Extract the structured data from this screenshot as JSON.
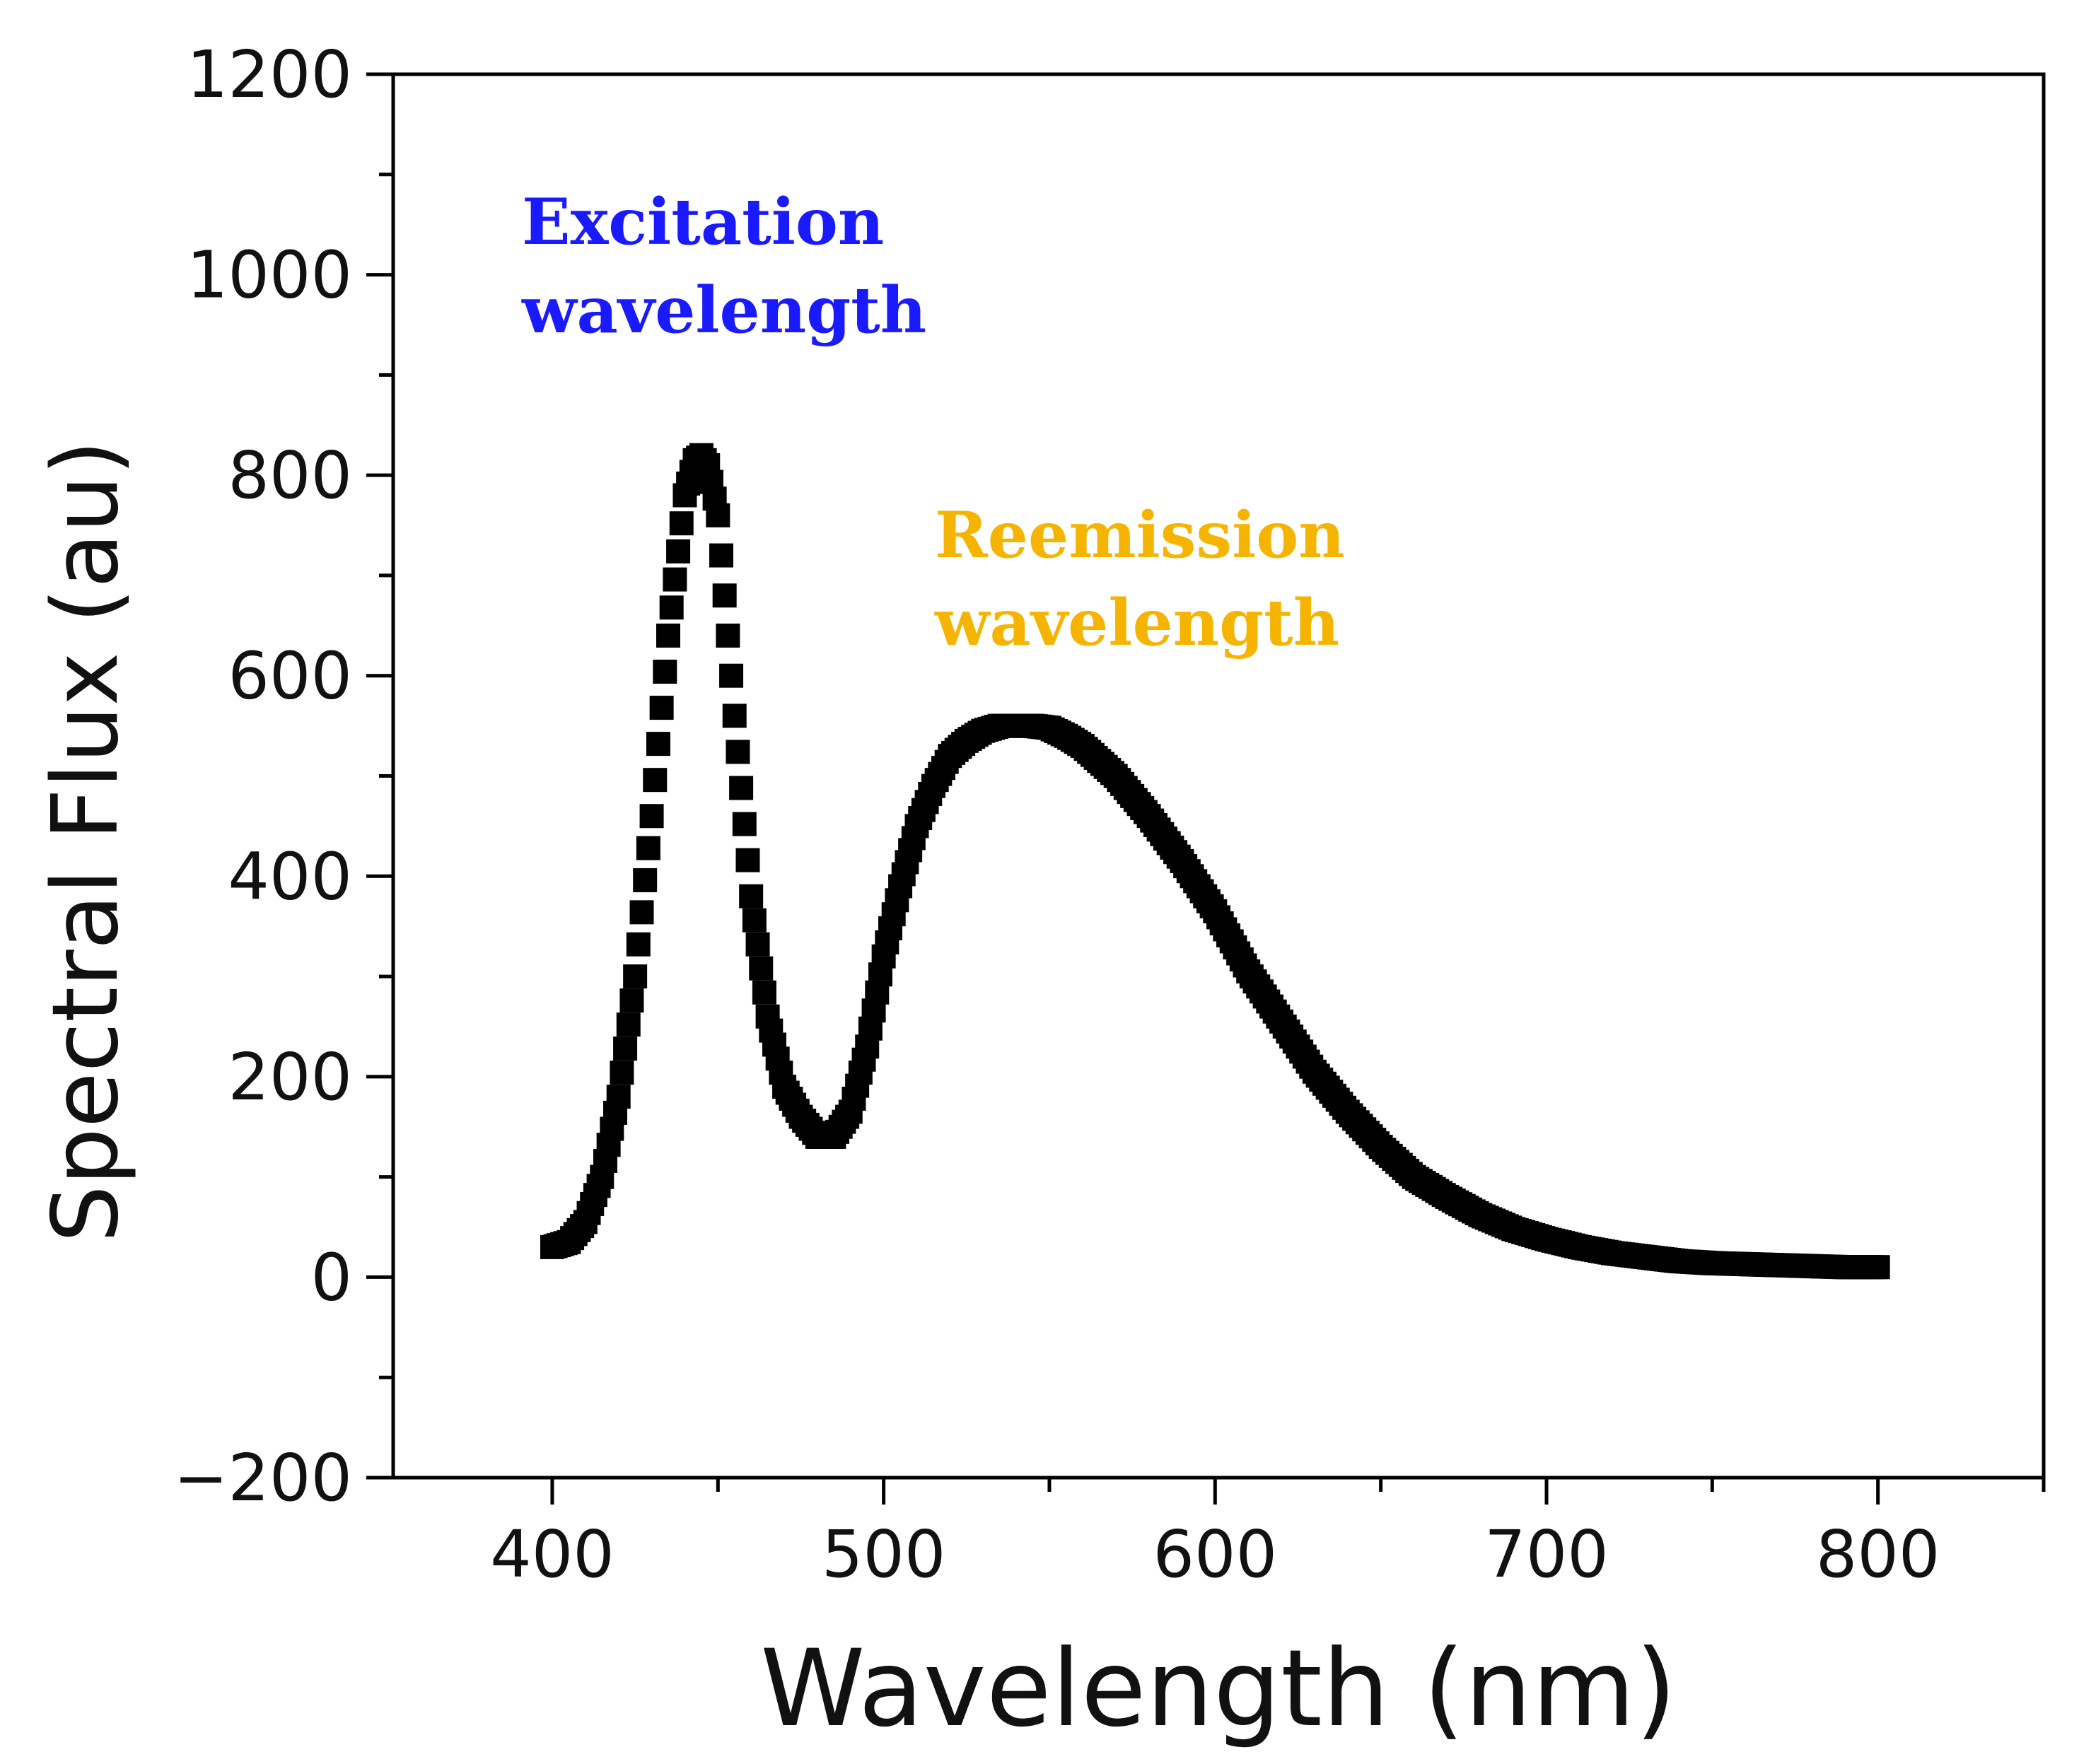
{
  "chart_data": {
    "type": "scatter",
    "title": "",
    "xlabel": "Wavelength (nm)",
    "ylabel": "Spectral Flux (au)",
    "xlim": [
      352,
      850
    ],
    "ylim": [
      -200,
      1200
    ],
    "xticks": [
      400,
      500,
      600,
      700,
      800
    ],
    "xtick_labels": [
      "400",
      "500",
      "600",
      "700",
      "800"
    ],
    "yticks": [
      -200,
      0,
      200,
      400,
      600,
      800,
      1000,
      1200
    ],
    "ytick_labels": [
      "−200",
      "0",
      "200",
      "400",
      "600",
      "800",
      "1000",
      "1200"
    ],
    "marker_color": "#000000",
    "series": [
      {
        "name": "Spectral flux",
        "x": [
          400,
          405,
          410,
          415,
          420,
          425,
          430,
          435,
          440,
          443,
          445,
          447,
          450,
          455,
          460,
          465,
          470,
          475,
          480,
          485,
          490,
          495,
          500,
          505,
          510,
          515,
          520,
          525,
          530,
          535,
          540,
          545,
          550,
          555,
          560,
          570,
          580,
          590,
          600,
          610,
          620,
          630,
          640,
          650,
          660,
          670,
          680,
          690,
          700,
          710,
          720,
          730,
          740,
          750,
          760,
          770,
          780,
          790,
          800
        ],
        "y": [
          30,
          35,
          55,
          100,
          180,
          300,
          460,
          640,
          780,
          815,
          820,
          810,
          760,
          560,
          380,
          260,
          190,
          160,
          140,
          140,
          165,
          230,
          320,
          390,
          450,
          490,
          520,
          535,
          545,
          550,
          550,
          550,
          548,
          540,
          530,
          500,
          460,
          415,
          365,
          305,
          255,
          205,
          165,
          130,
          100,
          80,
          62,
          48,
          38,
          30,
          24,
          20,
          16,
          14,
          13,
          12,
          11,
          10,
          10
        ]
      }
    ],
    "annotations": [
      {
        "text_line1": "Excitation",
        "text_line2": "wavelength",
        "color": "#1a1aff"
      },
      {
        "text_line1": "Reemission",
        "text_line2": "wavelength",
        "color": "#f5b400"
      }
    ]
  }
}
